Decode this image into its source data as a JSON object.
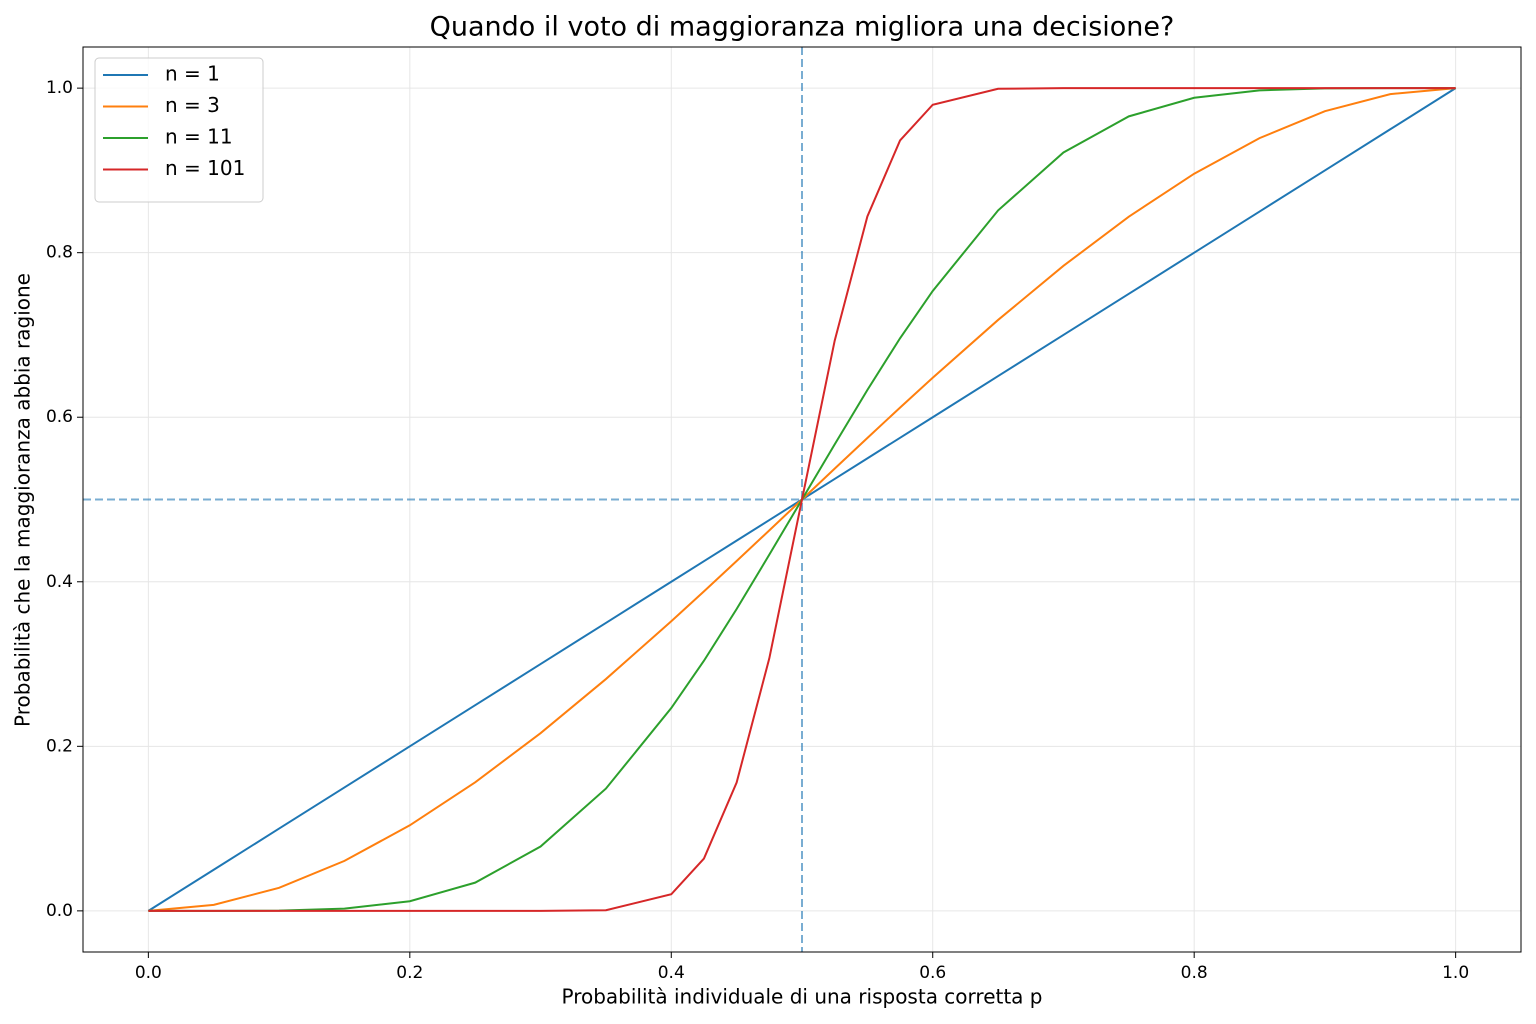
{
  "chart_data": {
    "type": "line",
    "title": "Quando il voto di maggioranza migliora una decisione?",
    "x_label": "Probabilità individuale di una risposta corretta p",
    "y_label": "Probabilità che la maggioranza abbia ragione",
    "x": [
      0,
      0.05,
      0.1,
      0.15,
      0.2,
      0.25,
      0.3,
      0.35,
      0.4,
      0.425,
      0.45,
      0.475,
      0.5,
      0.525,
      0.55,
      0.575,
      0.6,
      0.65,
      0.7,
      0.75,
      0.8,
      0.85,
      0.9,
      0.95,
      1
    ],
    "series": [
      {
        "name": "n = 1",
        "color": "#1f77b4",
        "values": [
          0,
          0.05,
          0.1,
          0.15,
          0.2,
          0.25,
          0.3,
          0.35,
          0.4,
          0.425,
          0.45,
          0.475,
          0.5,
          0.525,
          0.55,
          0.575,
          0.6,
          0.65,
          0.7,
          0.75,
          0.8,
          0.85,
          0.9,
          0.95,
          1
        ]
      },
      {
        "name": "n = 3",
        "color": "#ff7f0e",
        "values": [
          0,
          0.00725,
          0.028,
          0.06075,
          0.104,
          0.15625,
          0.216,
          0.28175,
          0.352,
          0.3883,
          0.4253,
          0.4625,
          0.5,
          0.5375,
          0.5748,
          0.6117,
          0.648,
          0.71825,
          0.784,
          0.84375,
          0.896,
          0.93925,
          0.972,
          0.99275,
          1
        ]
      },
      {
        "name": "n = 11",
        "color": "#2ca02c",
        "values": [
          0,
          0,
          0.0003,
          0.0027,
          0.0117,
          0.0343,
          0.0782,
          0.1486,
          0.2465,
          0.304,
          0.3669,
          0.433,
          0.5,
          0.567,
          0.6331,
          0.696,
          0.7535,
          0.8514,
          0.9218,
          0.9657,
          0.9883,
          0.9973,
          0.9997,
          1,
          1
        ]
      },
      {
        "name": "n = 101",
        "color": "#d62728",
        "values": [
          0,
          0,
          0,
          0,
          0,
          0,
          0,
          0.0008,
          0.0202,
          0.0636,
          0.156,
          0.307,
          0.5,
          0.693,
          0.844,
          0.9364,
          0.9798,
          0.9992,
          1,
          1,
          1,
          1,
          1,
          1,
          1
        ]
      }
    ],
    "vline": 0.5,
    "hline": 0.5,
    "reference_color": "#1f77b4",
    "xlim": [
      -0.05,
      1.05
    ],
    "ylim": [
      -0.05,
      1.05
    ],
    "xticks": [
      {
        "value": 0,
        "label": "0.0"
      },
      0.2,
      0.4,
      0.6,
      0.8,
      {
        "value": 1,
        "label": "1.0"
      }
    ],
    "yticks": [
      {
        "value": 0,
        "label": "0.0"
      },
      0.2,
      0.4,
      0.6,
      0.8,
      {
        "value": 1,
        "label": "1.0"
      }
    ],
    "grid": true,
    "legend": "upper-left"
  }
}
